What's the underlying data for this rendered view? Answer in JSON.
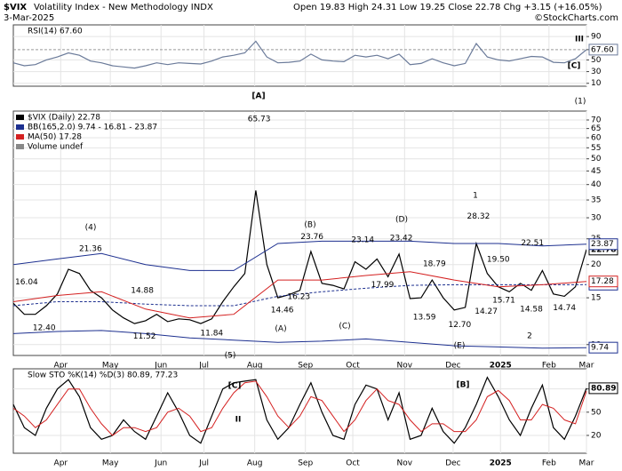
{
  "header": {
    "symbol": "$VIX",
    "name": "Volatility Index - New Methodology INDX",
    "date": "3-Mar-2025",
    "quote": "Open 19.83 High 24.31 Low 19.25 Close 22.78 Chg +3.15 (+16.05%)",
    "credit": "©StockCharts.com"
  },
  "chart_data": [
    {
      "type": "line",
      "title": "RSI(14) 67.60",
      "xlim": [
        0,
        52
      ],
      "ylim": [
        5,
        110
      ],
      "yticks": [
        90,
        {
          "value": 67.6,
          "label": "67.60"
        },
        50,
        30,
        10
      ],
      "grid": true,
      "x": [
        0,
        1,
        2,
        3,
        4,
        5,
        6,
        7,
        8,
        9,
        10,
        11,
        12,
        13,
        14,
        15,
        16,
        17,
        18,
        19,
        20,
        21,
        22,
        23,
        24,
        25,
        26,
        27,
        28,
        29,
        30,
        31,
        32,
        33,
        34,
        35,
        36,
        37,
        38,
        39,
        40,
        41,
        42,
        43,
        44,
        45,
        46,
        47,
        48,
        49,
        50,
        51,
        52
      ],
      "series": [
        {
          "color": "#6a7a99",
          "values": [
            45,
            40,
            42,
            50,
            55,
            62,
            58,
            48,
            45,
            40,
            38,
            36,
            40,
            45,
            42,
            45,
            44,
            43,
            48,
            55,
            58,
            62,
            82,
            55,
            45,
            46,
            48,
            60,
            50,
            48,
            47,
            58,
            55,
            58,
            52,
            60,
            42,
            44,
            52,
            45,
            40,
            44,
            78,
            55,
            50,
            48,
            52,
            56,
            55,
            46,
            45,
            52,
            67.6
          ]
        }
      ],
      "wave_labels": [
        "III",
        "[C]"
      ]
    },
    {
      "type": "line",
      "xlim": [
        0,
        52
      ],
      "ylim": [
        9.1,
        75.6
      ],
      "log": true,
      "grid": true,
      "yticks": [
        10,
        15,
        20,
        25,
        30,
        35,
        40,
        45,
        50,
        55,
        60,
        65,
        70
      ],
      "xticks": [
        {
          "value": 4.3,
          "label": "Apr"
        },
        {
          "value": 8.8,
          "label": "May"
        },
        {
          "value": 13.4,
          "label": "Jun"
        },
        {
          "value": 17.3,
          "label": "Jul"
        },
        {
          "value": 21.9,
          "label": "Aug"
        },
        {
          "value": 26.5,
          "label": "Sep"
        },
        {
          "value": 30.8,
          "label": "Oct"
        },
        {
          "value": 35.5,
          "label": "Nov"
        },
        {
          "value": 39.9,
          "label": "Dec"
        },
        {
          "value": 44.2,
          "label": "2025"
        },
        {
          "value": 48.6,
          "label": "Feb"
        },
        {
          "value": 52,
          "label": "Mar"
        }
      ],
      "x": [
        0,
        1,
        2,
        3,
        4,
        5,
        6,
        7,
        8,
        9,
        10,
        11,
        12,
        13,
        14,
        15,
        16,
        17,
        18,
        19,
        20,
        21,
        22,
        23,
        24,
        25,
        26,
        27,
        28,
        29,
        30,
        31,
        32,
        33,
        34,
        35,
        36,
        37,
        38,
        39,
        40,
        41,
        42,
        43,
        44,
        45,
        46,
        47,
        48,
        49,
        50,
        51,
        52
      ],
      "series": [
        {
          "name": "$VIX (Daily) 22.78",
          "color": "#000000",
          "values": [
            14.3,
            13.0,
            13.0,
            14.0,
            15.5,
            19.2,
            18.5,
            16.0,
            15.0,
            13.5,
            12.6,
            12.0,
            12.3,
            13.0,
            12.2,
            12.5,
            12.4,
            12.0,
            12.5,
            14.5,
            16.5,
            18.5,
            38.0,
            20.0,
            15.0,
            15.4,
            16.0,
            22.4,
            17.0,
            16.7,
            16.2,
            20.5,
            19.2,
            21.0,
            18.0,
            21.9,
            14.9,
            15.0,
            17.5,
            15.0,
            13.5,
            13.8,
            24.0,
            18.5,
            16.5,
            15.8,
            17.0,
            16.0,
            19.0,
            15.5,
            15.2,
            16.5,
            22.78
          ]
        },
        {
          "name": "BB(165,2.0) 9.74 - 16.81 - 23.87",
          "color": "#1c2f8f",
          "x": [
            0,
            4,
            8,
            12,
            16,
            20,
            24,
            28,
            32,
            36,
            40,
            44,
            48,
            52
          ],
          "values": [
            20,
            21,
            22,
            20,
            19,
            19,
            24,
            24.5,
            24.5,
            24.5,
            24,
            24,
            23.5,
            23.87
          ]
        },
        {
          "color": "#1c2f8f",
          "style": "dashed",
          "x": [
            0,
            4,
            8,
            12,
            16,
            20,
            24,
            28,
            32,
            36,
            40,
            44,
            48,
            52
          ],
          "values": [
            14,
            14.5,
            14.5,
            14.2,
            14,
            14,
            15.2,
            15.8,
            16.3,
            16.7,
            16.8,
            16.8,
            16.8,
            16.81
          ]
        },
        {
          "color": "#1c2f8f",
          "x": [
            0,
            4,
            8,
            12,
            16,
            20,
            24,
            28,
            32,
            36,
            40,
            44,
            48,
            52
          ],
          "values": [
            11,
            11.2,
            11.3,
            11,
            10.6,
            10.4,
            10.2,
            10.3,
            10.5,
            10.2,
            9.9,
            9.8,
            9.7,
            9.74
          ]
        },
        {
          "name": "MA(50) 17.28",
          "color": "#d42020",
          "x": [
            0,
            4,
            8,
            12,
            16,
            20,
            24,
            28,
            32,
            36,
            40,
            44,
            48,
            52
          ],
          "values": [
            14.5,
            15.3,
            15.8,
            13.6,
            12.6,
            13,
            17.5,
            17.5,
            18.2,
            18.8,
            17.5,
            16.5,
            16.8,
            17.28
          ]
        }
      ],
      "notes": [
        "Volume undef"
      ],
      "annotations": [
        {
          "x": 1.2,
          "value": 16.04
        },
        {
          "x": 2.8,
          "value": 12.4,
          "label": "12.40"
        },
        {
          "x": 7.0,
          "value": 21.36
        },
        {
          "x": 11.7,
          "value": 14.88
        },
        {
          "x": 11.9,
          "value": 11.52
        },
        {
          "x": 18.0,
          "value": 11.84
        },
        {
          "x": 22.3,
          "value": 65.73
        },
        {
          "x": 24.4,
          "value": 14.46
        },
        {
          "x": 27.1,
          "value": 23.76
        },
        {
          "x": 25.9,
          "value": 16.23
        },
        {
          "x": 31.7,
          "value": 23.14
        },
        {
          "x": 33.5,
          "value": 17.99
        },
        {
          "x": 35.2,
          "value": 23.42
        },
        {
          "x": 38.2,
          "value": 18.79
        },
        {
          "x": 37.3,
          "value": 13.59
        },
        {
          "x": 40.5,
          "value": 12.7,
          "label": "12.70"
        },
        {
          "x": 42.2,
          "value": 28.32
        },
        {
          "x": 42.9,
          "value": 14.27
        },
        {
          "x": 44.5,
          "value": 15.71
        },
        {
          "x": 44.0,
          "value": 19.5,
          "label": "19.50"
        },
        {
          "x": 47.1,
          "value": 22.51
        },
        {
          "x": 47.0,
          "value": 14.58
        },
        {
          "x": 50.0,
          "value": 14.74
        }
      ],
      "wave_labels": [
        "(4)",
        "(5)",
        "[A]",
        "(A)",
        "(B)",
        "(C)",
        "(D)",
        "(E)",
        "1",
        "2",
        "(1)"
      ]
    },
    {
      "type": "line",
      "title": "Slow STO %K(14) %D(3) 80.89, 77.23",
      "xlim": [
        0,
        52
      ],
      "ylim": [
        -3,
        106
      ],
      "yticks": [
        80,
        50,
        20
      ],
      "grid": true,
      "x": [
        0,
        1,
        2,
        3,
        4,
        5,
        6,
        7,
        8,
        9,
        10,
        11,
        12,
        13,
        14,
        15,
        16,
        17,
        18,
        19,
        20,
        21,
        22,
        23,
        24,
        25,
        26,
        27,
        28,
        29,
        30,
        31,
        32,
        33,
        34,
        35,
        36,
        37,
        38,
        39,
        40,
        41,
        42,
        43,
        44,
        45,
        46,
        47,
        48,
        49,
        50,
        51,
        52
      ],
      "series": [
        {
          "color": "#000000",
          "values": [
            60,
            30,
            20,
            55,
            80,
            92,
            70,
            30,
            15,
            20,
            40,
            25,
            15,
            45,
            75,
            50,
            20,
            10,
            45,
            80,
            88,
            90,
            92,
            40,
            15,
            30,
            60,
            88,
            50,
            20,
            15,
            60,
            85,
            80,
            40,
            75,
            15,
            20,
            55,
            25,
            10,
            30,
            60,
            95,
            70,
            40,
            20,
            55,
            85,
            30,
            15,
            45,
            80.89
          ]
        },
        {
          "color": "#d42020",
          "values": [
            55,
            45,
            30,
            40,
            60,
            80,
            80,
            55,
            35,
            20,
            30,
            30,
            25,
            30,
            50,
            55,
            45,
            25,
            30,
            55,
            75,
            88,
            90,
            70,
            45,
            30,
            45,
            70,
            65,
            45,
            25,
            40,
            65,
            80,
            65,
            60,
            40,
            25,
            35,
            35,
            25,
            25,
            40,
            70,
            78,
            65,
            40,
            40,
            60,
            55,
            40,
            35,
            77.23
          ]
        }
      ],
      "wave_labels": [
        "[C]",
        "II",
        "[B]"
      ]
    }
  ]
}
